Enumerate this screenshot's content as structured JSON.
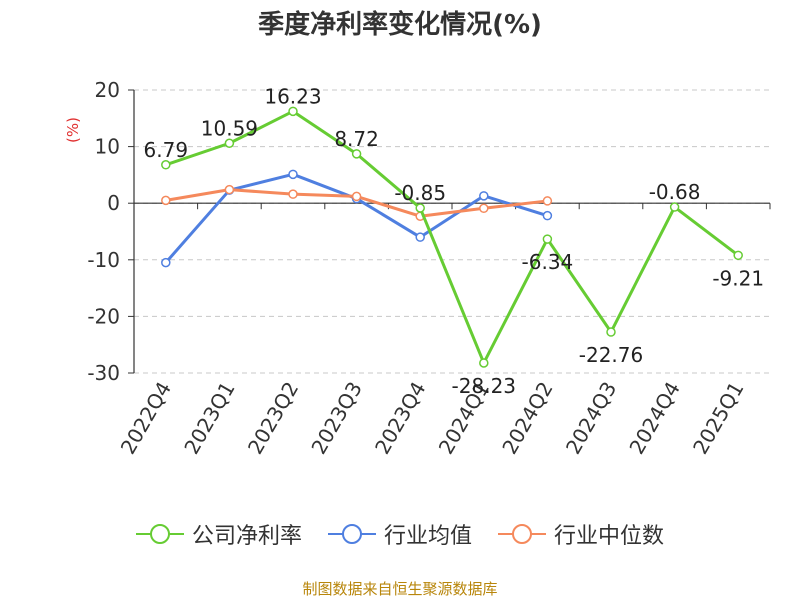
{
  "page": {
    "title": "季度净利率变化情况(%)",
    "source": "制图数据来自恒生聚源数据库"
  },
  "chart_data": {
    "type": "line",
    "categories": [
      "2022Q4",
      "2023Q1",
      "2023Q2",
      "2023Q3",
      "2023Q4",
      "2024Q1",
      "2024Q2",
      "2024Q3",
      "2024Q4",
      "2025Q1"
    ],
    "ylim": [
      -30,
      20
    ],
    "yticks": [
      20,
      10,
      0,
      -10,
      -20,
      -30
    ],
    "ylabel": "(%)",
    "grid": true,
    "legend_position": "bottom",
    "series": [
      {
        "name": "公司净利率",
        "color": "#66cc33",
        "values": [
          6.79,
          10.59,
          16.23,
          8.72,
          -0.85,
          -28.23,
          -6.34,
          -22.76,
          -0.68,
          -9.21
        ],
        "labels": [
          "6.79",
          "10.59",
          "16.23",
          "8.72",
          "-0.85",
          "-28.23",
          "-6.34",
          "-22.76",
          "-0.68",
          "-9.21"
        ]
      },
      {
        "name": "行业均值",
        "color": "#4f7fe0",
        "values": [
          -10.5,
          2.3,
          5.1,
          0.8,
          -6.0,
          1.3,
          -2.2,
          null,
          null,
          null
        ]
      },
      {
        "name": "行业中位数",
        "color": "#f5895c",
        "values": [
          0.5,
          2.4,
          1.6,
          1.2,
          -2.3,
          -0.9,
          0.4,
          null,
          null,
          null
        ]
      }
    ]
  }
}
